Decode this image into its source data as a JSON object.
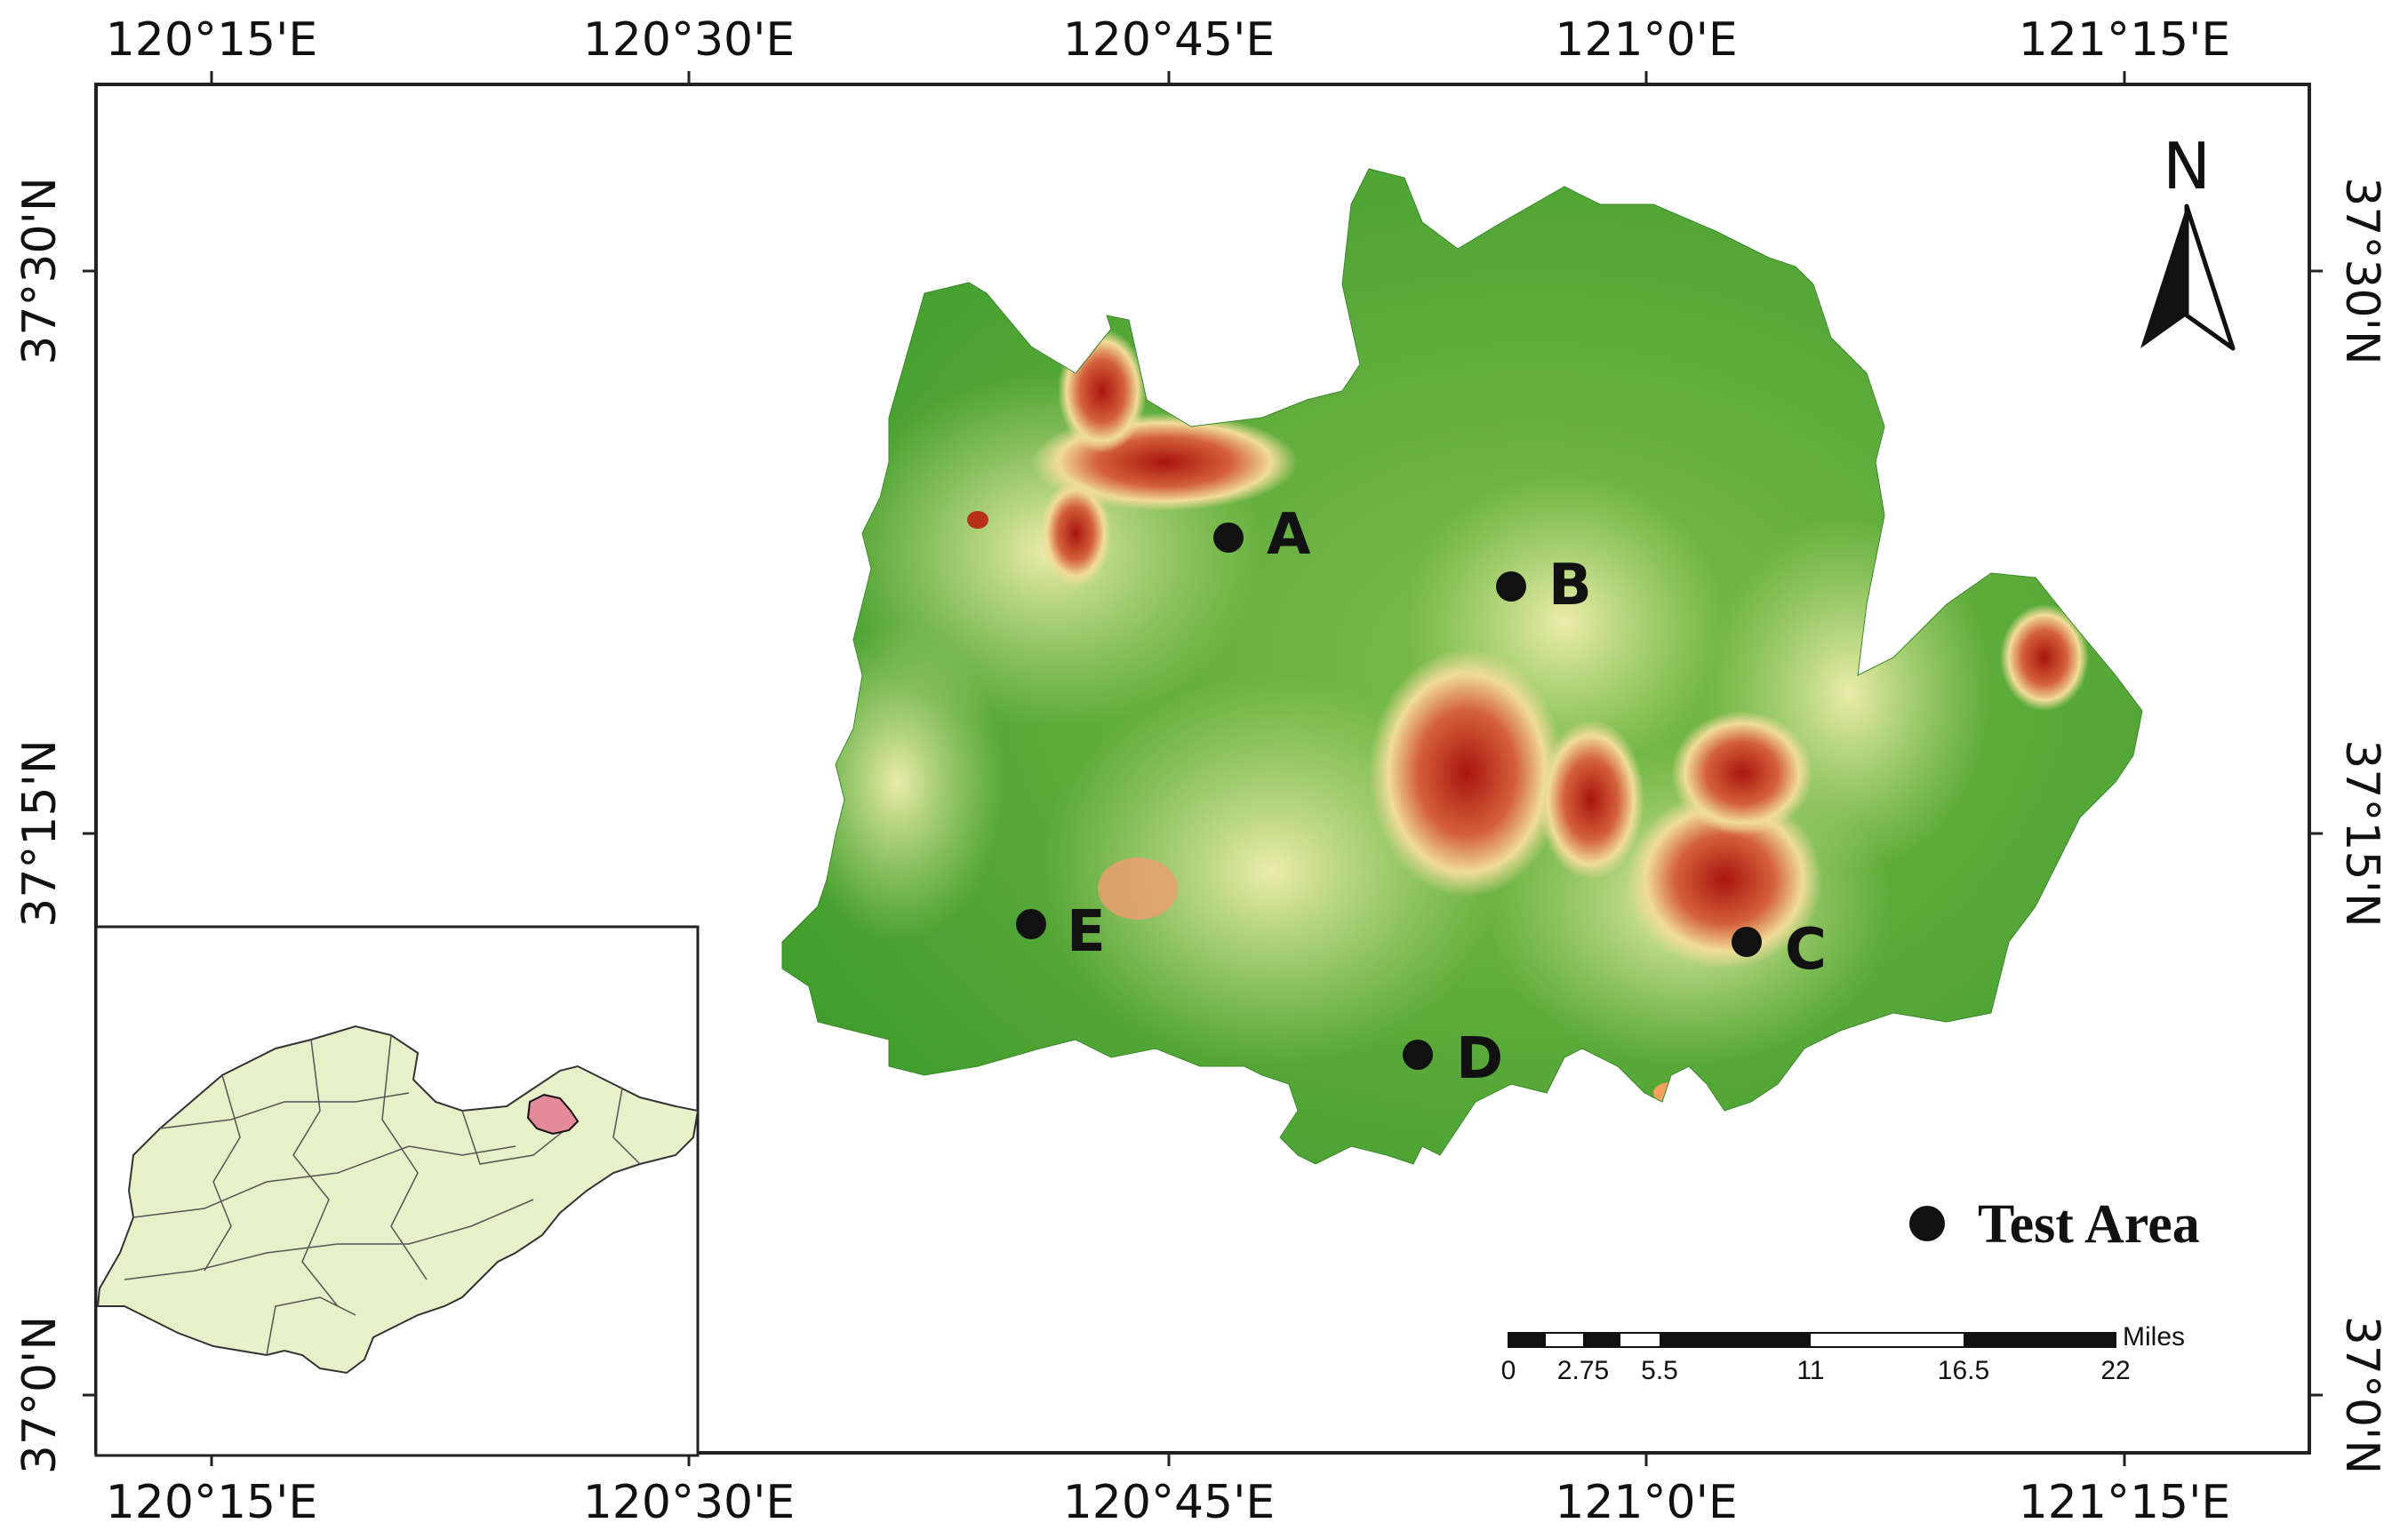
{
  "axes": {
    "top_labels": [
      "120°15'E",
      "120°30'E",
      "120°45'E",
      "121°0'E",
      "121°15'E"
    ],
    "bottom_labels": [
      "120°15'E",
      "120°30'E",
      "120°45'E",
      "121°0'E",
      "121°15'E"
    ],
    "left_labels": [
      "37°30'N",
      "37°15'N",
      "37°0'N"
    ],
    "right_labels": [
      "37°30'N",
      "37°15'N",
      "37°0'N"
    ]
  },
  "north_arrow": {
    "label": "N",
    "icon": "north-arrow-icon"
  },
  "points": [
    {
      "label": "A"
    },
    {
      "label": "B"
    },
    {
      "label": "C"
    },
    {
      "label": "D"
    },
    {
      "label": "E"
    }
  ],
  "legend": {
    "label": "Test Area",
    "icon": "point-marker-icon"
  },
  "scale_bar": {
    "unit": "Miles",
    "ticks": [
      "0",
      "2.75",
      "5.5",
      "11",
      "16.5",
      "22"
    ]
  },
  "colors": {
    "elevation_low": "#3c9a2a",
    "elevation_mid": "#f3f0a8",
    "elevation_high": "#a8150c",
    "inset_fill": "#e7f0c8",
    "study_area_inset": "#e58a9a"
  }
}
